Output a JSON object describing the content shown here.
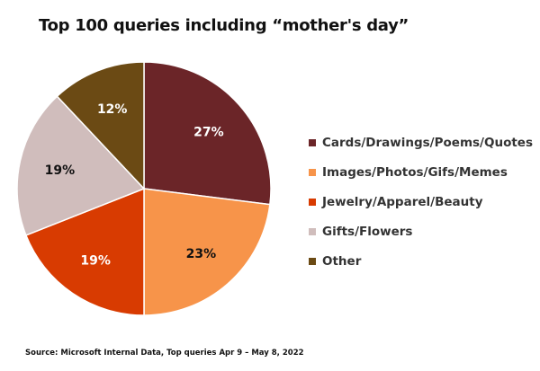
{
  "chart_data": {
    "type": "pie",
    "title": "Top 100 queries including “mother's day”",
    "categories": [
      "Cards/Drawings/Poems/Quotes",
      "Images/Photos/Gifs/Memes",
      "Jewelry/Apparel/Beauty",
      "Gifts/Flowers",
      "Other"
    ],
    "values": [
      27,
      23,
      19,
      19,
      12
    ],
    "labels": [
      "27%",
      "23%",
      "19%",
      "19%",
      "12%"
    ],
    "colors": [
      "#6B2528",
      "#F7944A",
      "#D83B01",
      "#D0BDBC",
      "#6B4A14"
    ],
    "label_colors": [
      "#ffffff",
      "#111111",
      "#ffffff",
      "#111111",
      "#ffffff"
    ],
    "legend_position": "right",
    "source": "Source: Microsoft Internal Data, Top queries Apr 9 – May 8, 2022"
  },
  "legend": [
    {
      "label": "Cards/Drawings/Poems/Quotes",
      "color": "#6B2528"
    },
    {
      "label": "Images/Photos/Gifs/Memes",
      "color": "#F7944A"
    },
    {
      "label": "Jewelry/Apparel/Beauty",
      "color": "#D83B01"
    },
    {
      "label": "Gifts/Flowers",
      "color": "#D0BDBC"
    },
    {
      "label": "Other",
      "color": "#6B4A14"
    }
  ]
}
